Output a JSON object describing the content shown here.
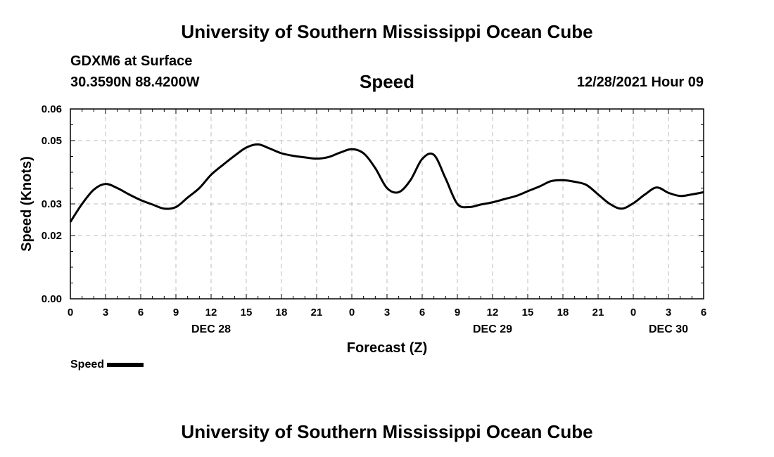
{
  "header": {
    "title": "University of Southern Mississippi Ocean Cube",
    "station": "GDXM6 at Surface",
    "coords": "30.3590N  88.4200W",
    "datetime": "12/28/2021 Hour 09"
  },
  "footer": {
    "title": "University of Southern Mississippi Ocean Cube"
  },
  "legend": {
    "label": "Speed",
    "color": "#000000"
  },
  "chart_data": {
    "type": "line",
    "title": "Speed",
    "xlabel": "Forecast (Z)",
    "ylabel": "Speed (Knots)",
    "xlim": [
      0,
      54
    ],
    "ylim": [
      0,
      0.06
    ],
    "grid": true,
    "x_ticks": [
      0,
      3,
      6,
      9,
      12,
      15,
      18,
      21,
      24,
      27,
      30,
      33,
      36,
      39,
      42,
      45,
      48,
      51,
      54
    ],
    "x_tick_labels": [
      "0",
      "3",
      "6",
      "9",
      "12",
      "15",
      "18",
      "21",
      "0",
      "3",
      "6",
      "9",
      "12",
      "15",
      "18",
      "21",
      "0",
      "3",
      "6"
    ],
    "y_ticks": [
      0,
      0.02,
      0.03,
      0.05,
      0.06
    ],
    "y_tick_labels": [
      "0.00",
      "0.02",
      "0.03",
      "0.05",
      "0.06"
    ],
    "date_labels": [
      {
        "x": 12,
        "label": "DEC 28"
      },
      {
        "x": 36,
        "label": "DEC 29"
      },
      {
        "x": 51,
        "label": "DEC 30"
      }
    ],
    "series": [
      {
        "name": "Speed",
        "color": "#000000",
        "x": [
          0,
          1,
          2,
          3,
          4,
          5,
          6,
          7,
          8,
          9,
          10,
          11,
          12,
          13,
          14,
          15,
          16,
          17,
          18,
          19,
          20,
          21,
          22,
          23,
          24,
          25,
          26,
          27,
          28,
          29,
          30,
          31,
          32,
          33,
          34,
          35,
          36,
          37,
          38,
          39,
          40,
          41,
          42,
          43,
          44,
          45,
          46,
          47,
          48,
          49,
          50,
          51,
          52,
          53,
          54
        ],
        "values": [
          0.0243,
          0.03,
          0.0345,
          0.0363,
          0.035,
          0.033,
          0.0312,
          0.0298,
          0.0285,
          0.029,
          0.032,
          0.035,
          0.0392,
          0.0423,
          0.0452,
          0.0478,
          0.0488,
          0.0475,
          0.046,
          0.0452,
          0.0447,
          0.0443,
          0.0448,
          0.0462,
          0.0473,
          0.046,
          0.0413,
          0.035,
          0.0337,
          0.0375,
          0.0442,
          0.0455,
          0.038,
          0.03,
          0.029,
          0.0298,
          0.0305,
          0.0315,
          0.0325,
          0.034,
          0.0355,
          0.0372,
          0.0375,
          0.037,
          0.036,
          0.033,
          0.03,
          0.0285,
          0.0302,
          0.033,
          0.0352,
          0.0335,
          0.0325,
          0.033,
          0.0337
        ]
      }
    ]
  }
}
